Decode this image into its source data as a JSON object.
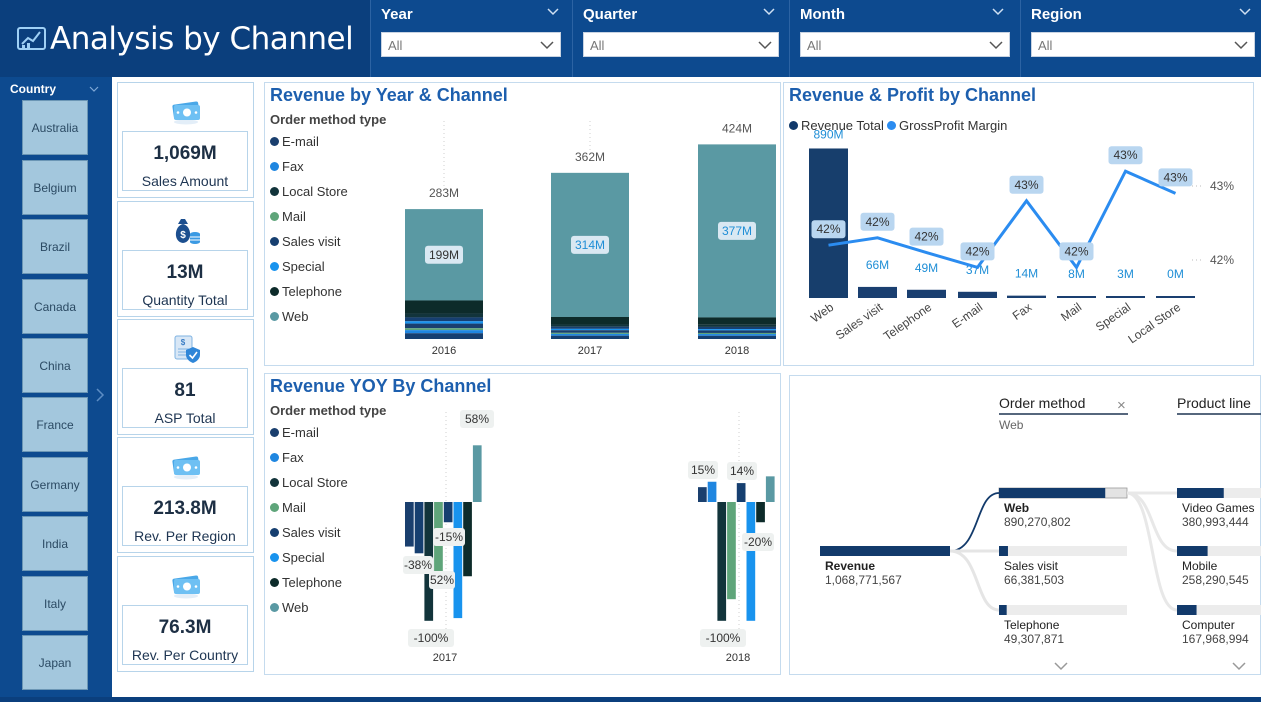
{
  "header": {
    "title": "Analysis by Channel",
    "filters": [
      {
        "label": "Year",
        "value": "All"
      },
      {
        "label": "Quarter",
        "value": "All"
      },
      {
        "label": "Month",
        "value": "All"
      },
      {
        "label": "Region",
        "value": "All"
      }
    ]
  },
  "sidebar": {
    "label": "Country",
    "countries": [
      "Australia",
      "Belgium",
      "Brazil",
      "Canada",
      "China",
      "France",
      "Germany",
      "India",
      "Italy",
      "Japan"
    ]
  },
  "kpis": [
    {
      "value": "1,069M",
      "label": "Sales Amount",
      "icon": "money-icon"
    },
    {
      "value": "13M",
      "label": "Quantity Total",
      "icon": "money-bag-icon"
    },
    {
      "value": "81",
      "label": "ASP Total",
      "icon": "document-shield-icon"
    },
    {
      "value": "213.8M",
      "label": "Rev. Per Region",
      "icon": "money-icon"
    },
    {
      "value": "76.3M",
      "label": "Rev. Per Country",
      "icon": "money-icon"
    }
  ],
  "legend": {
    "title": "Order method type",
    "items": [
      {
        "name": "E-mail",
        "color": "#1a3f6e"
      },
      {
        "name": "Fax",
        "color": "#1f86e0"
      },
      {
        "name": "Local Store",
        "color": "#12343b"
      },
      {
        "name": "Mail",
        "color": "#5fa57a"
      },
      {
        "name": "Sales visit",
        "color": "#163f70"
      },
      {
        "name": "Special",
        "color": "#1893ee"
      },
      {
        "name": "Telephone",
        "color": "#0d2b2a"
      },
      {
        "name": "Web",
        "color": "#5a99a3"
      }
    ]
  },
  "chart_data": [
    {
      "type": "bar",
      "title": "Revenue by Year & Channel",
      "stacked": true,
      "categories": [
        "2016",
        "2017",
        "2018"
      ],
      "totals": [
        "283M",
        "362M",
        "424M"
      ],
      "total_values": [
        283,
        362,
        424
      ],
      "series": [
        {
          "name": "Web",
          "values": [
            199,
            314,
            377
          ],
          "labels": [
            "199M",
            "314M",
            "377M"
          ]
        }
      ]
    },
    {
      "type": "bar",
      "title": "Revenue & Profit by Channel",
      "legend": [
        "Revenue Total",
        "GrossProfit Margin"
      ],
      "categories": [
        "Web",
        "Sales visit",
        "Telephone",
        "E-mail",
        "Fax",
        "Mail",
        "Special",
        "Local Store"
      ],
      "series": [
        {
          "name": "Revenue Total",
          "values": [
            890,
            66,
            49,
            37,
            14,
            8,
            3,
            0
          ],
          "labels": [
            "890M",
            "66M",
            "49M",
            "37M",
            "14M",
            "8M",
            "3M",
            "0M"
          ]
        },
        {
          "name": "GrossProfit Margin",
          "values": [
            42.2,
            42.3,
            42.1,
            41.9,
            42.8,
            41.9,
            43.2,
            42.9
          ],
          "labels": [
            "42%",
            "42%",
            "42%",
            "42%",
            "43%",
            "42%",
            "43%",
            "43%"
          ]
        }
      ],
      "y2_ticks": [
        "43%",
        "42%"
      ]
    },
    {
      "type": "bar",
      "title": "Revenue YOY By Channel",
      "categories": [
        "2017",
        "2018"
      ],
      "labels": [
        "58%",
        "-38%",
        "-15%",
        "52%",
        "-100%",
        "15%",
        "14%",
        "-20%",
        "-100%"
      ]
    }
  ],
  "decomp": {
    "col1": "Order method",
    "col1_value": "Web",
    "col2": "Product line",
    "root": {
      "label": "Revenue",
      "value": "1,068,771,567"
    },
    "level1": [
      {
        "label": "Web",
        "value": "890,270,802"
      },
      {
        "label": "Sales visit",
        "value": "66,381,503"
      },
      {
        "label": "Telephone",
        "value": "49,307,871"
      }
    ],
    "level2": [
      {
        "label": "Video Games",
        "value": "380,993,444"
      },
      {
        "label": "Mobile",
        "value": "258,290,545"
      },
      {
        "label": "Computer",
        "value": "167,968,994"
      }
    ]
  }
}
